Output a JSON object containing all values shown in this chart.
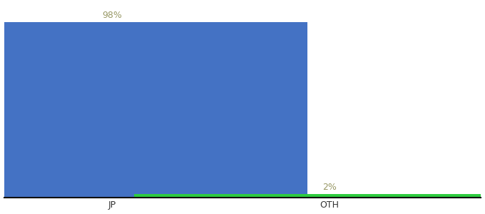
{
  "categories": [
    "JP",
    "OTH"
  ],
  "values": [
    98,
    2
  ],
  "bar_colors": [
    "#4472c4",
    "#2ecc40"
  ],
  "value_labels": [
    "98%",
    "2%"
  ],
  "ylim": [
    0,
    108
  ],
  "background_color": "#ffffff",
  "label_color": "#999966",
  "label_fontsize": 9,
  "tick_fontsize": 9,
  "bar_width": 0.9,
  "x_positions": [
    0.25,
    0.75
  ],
  "xlim": [
    0.0,
    1.1
  ]
}
